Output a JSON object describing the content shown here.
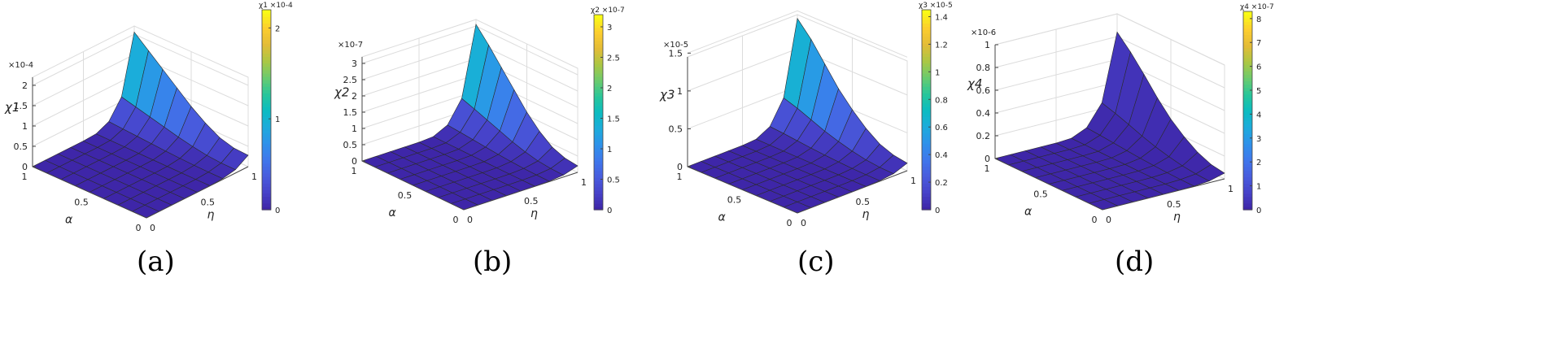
{
  "figure": {
    "x_axis_label": "η",
    "y_axis_label": "α",
    "x_ticks": [
      "0",
      "0.5",
      "1"
    ],
    "y_ticks": [
      "0",
      "0.5",
      "1"
    ],
    "surface_edge_color": "#2b2b2b"
  },
  "colormap": [
    "#3e26a8",
    "#4743ca",
    "#485dde",
    "#3f78ec",
    "#2e92ea",
    "#1cacdb",
    "#0bbcc0",
    "#29c699",
    "#6ccb6d",
    "#acc743",
    "#e4bc37",
    "#fdce2e",
    "#f9fb15"
  ],
  "chart_data": [
    {
      "type": "surface",
      "panel_label": "(a)",
      "zlabel": "χ1",
      "z_exponent": "×10-4",
      "colorbar_label": "χ1 ×10-4",
      "z_ticks": [
        "0",
        "0.5",
        "1",
        "1.5",
        "2"
      ],
      "z_range": [
        0,
        2.2
      ],
      "colorbar_ticks": [
        "0",
        "1",
        "2"
      ],
      "colorbar_range": [
        0,
        2.2
      ],
      "x": [
        0,
        0.125,
        0.25,
        0.375,
        0.5,
        0.625,
        0.75,
        0.875,
        1
      ],
      "y": [
        0,
        0.125,
        0.25,
        0.375,
        0.5,
        0.625,
        0.75,
        0.875,
        1
      ],
      "ridge_profile": [
        0,
        0,
        0,
        0,
        0,
        0.01,
        0.08,
        0.3,
        1
      ],
      "edge_values": [
        0,
        0,
        0,
        0,
        0.01,
        0.06,
        0.22,
        0.6,
        1.1
      ],
      "edge_far_values": [
        0.28,
        0.3,
        0.4,
        0.6,
        0.85,
        1.15,
        1.45,
        1.75,
        2.05
      ]
    },
    {
      "type": "surface",
      "panel_label": "(b)",
      "zlabel": "χ2",
      "z_exponent": "×10-7",
      "colorbar_label": "χ2 ×10-7",
      "z_ticks": [
        "0",
        "0.5",
        "1",
        "1.5",
        "2",
        "2.5",
        "3"
      ],
      "z_range": [
        0,
        3.2
      ],
      "colorbar_ticks": [
        "0",
        "0.5",
        "1",
        "1.5",
        "2",
        "2.5",
        "3"
      ],
      "colorbar_range": [
        0,
        3.2
      ],
      "x": [
        0,
        0.125,
        0.25,
        0.375,
        0.5,
        0.625,
        0.75,
        0.875,
        1
      ],
      "y": [
        0,
        0.125,
        0.25,
        0.375,
        0.5,
        0.625,
        0.75,
        0.875,
        1
      ],
      "ridge_profile": [
        0,
        0,
        0,
        0,
        0,
        0.01,
        0.08,
        0.3,
        1
      ],
      "edge_values": [
        0,
        0,
        0,
        0,
        0.01,
        0.06,
        0.25,
        0.75,
        1.45
      ],
      "edge_far_values": [
        0.2,
        0.25,
        0.4,
        0.7,
        1.1,
        1.6,
        2.1,
        2.6,
        3.05
      ]
    },
    {
      "type": "surface",
      "panel_label": "(c)",
      "zlabel": "χ3",
      "z_exponent": "×10-5",
      "colorbar_label": "χ3 ×10-5",
      "z_ticks": [
        "0",
        "0.5",
        "1",
        "1.5"
      ],
      "z_range": [
        0,
        1.45
      ],
      "colorbar_ticks": [
        "0",
        "0.2",
        "0.4",
        "0.6",
        "0.8",
        "1",
        "1.2",
        "1.4"
      ],
      "colorbar_range": [
        0,
        1.45
      ],
      "x": [
        0,
        0.125,
        0.25,
        0.375,
        0.5,
        0.625,
        0.75,
        0.875,
        1
      ],
      "y": [
        0,
        0.125,
        0.25,
        0.375,
        0.5,
        0.625,
        0.75,
        0.875,
        1
      ],
      "ridge_profile": [
        0,
        0,
        0,
        0,
        0,
        0.01,
        0.08,
        0.3,
        1
      ],
      "edge_values": [
        0,
        0,
        0,
        0,
        0.01,
        0.04,
        0.14,
        0.4,
        0.75
      ],
      "edge_far_values": [
        0.1,
        0.13,
        0.2,
        0.33,
        0.5,
        0.7,
        0.95,
        1.2,
        1.4
      ]
    },
    {
      "type": "surface",
      "panel_label": "(d)",
      "zlabel": "χ4",
      "z_exponent": "×10-6",
      "colorbar_label": "χ4 ×10-7",
      "z_ticks": [
        "0",
        "0.2",
        "0.4",
        "0.6",
        "0.8",
        "1"
      ],
      "z_range": [
        0,
        1.0
      ],
      "colorbar_ticks": [
        "0",
        "1",
        "2",
        "3",
        "4",
        "5",
        "6",
        "7",
        "8"
      ],
      "colorbar_range": [
        0,
        8.3
      ],
      "x": [
        0,
        0.125,
        0.25,
        0.375,
        0.5,
        0.625,
        0.75,
        0.875,
        1
      ],
      "y": [
        0,
        0.125,
        0.25,
        0.375,
        0.5,
        0.625,
        0.75,
        0.875,
        1
      ],
      "ridge_profile": [
        0,
        0,
        0,
        0,
        0,
        0.01,
        0.08,
        0.3,
        1
      ],
      "edge_values": [
        0,
        0,
        0,
        0,
        0.005,
        0.03,
        0.1,
        0.25,
        0.45
      ],
      "edge_far_values": [
        0.05,
        0.07,
        0.12,
        0.2,
        0.3,
        0.43,
        0.58,
        0.72,
        0.84
      ]
    }
  ]
}
